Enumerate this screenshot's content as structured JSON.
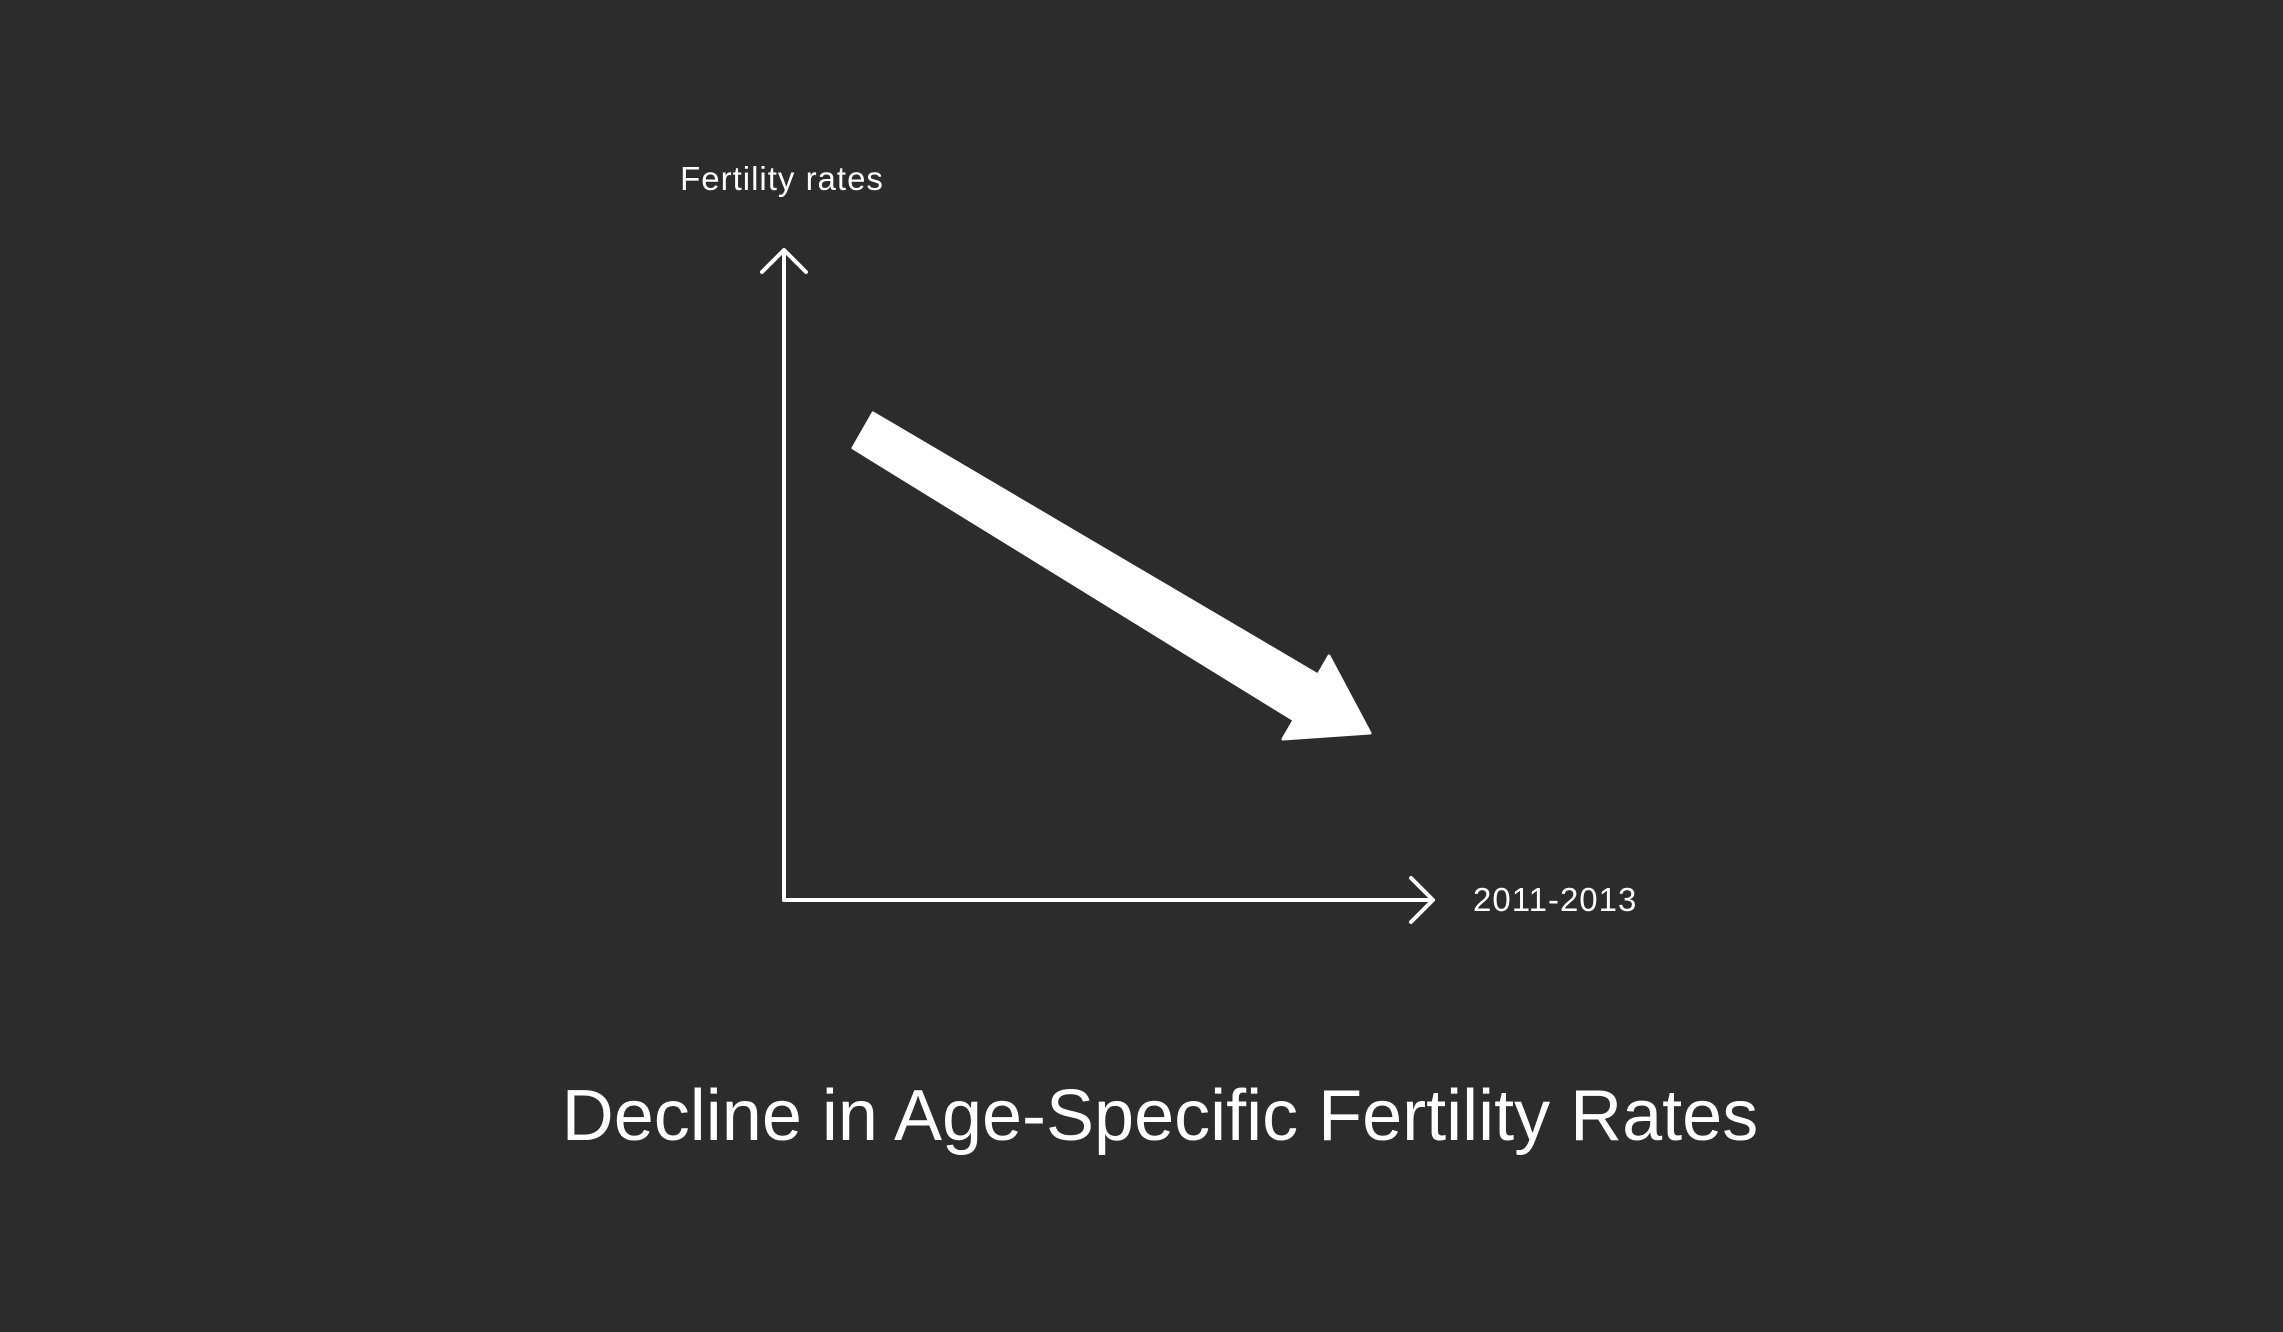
{
  "colors": {
    "background": "#2c2c2c",
    "foreground": "#ffffff"
  },
  "diagram": {
    "y_axis_label": "Fertility rates",
    "x_axis_label": "2011-2013",
    "trend_direction": "downward",
    "title": "Decline in Age-Specific Fertility Rates"
  },
  "icons": {
    "trend_arrow": "down-right-arrow-icon",
    "y_axis_head": "chevron-up-icon",
    "x_axis_head": "chevron-right-icon"
  }
}
